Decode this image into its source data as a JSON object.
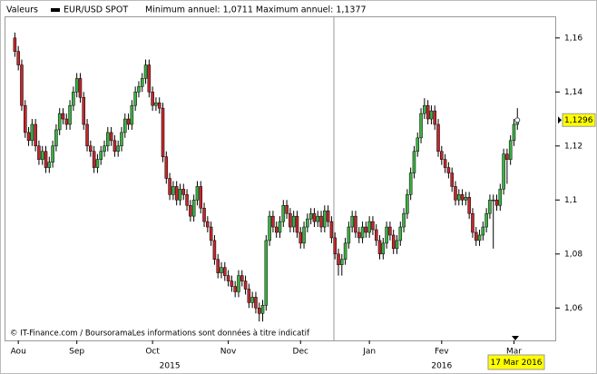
{
  "chart_data": {
    "type": "candlestick",
    "header": {
      "label": "Valeurs",
      "series_name": "EUR/USD SPOT",
      "stats": "Minimum annuel: 1,0711 Maximum annuel: 1,1377"
    },
    "footnote": "© IT-Finance.com / BoursoramaLes informations sont données à titre indicatif",
    "cursor_date": "17 Mar 2016",
    "up_color": "#3cb043",
    "down_color": "#c0282d",
    "xlim": [
      -3,
      157
    ],
    "xticks": [
      {
        "value": 1,
        "label": "Aou"
      },
      {
        "value": 18,
        "label": "Sep"
      },
      {
        "value": 40,
        "label": "Oct"
      },
      {
        "value": 62,
        "label": "Nov"
      },
      {
        "value": 83,
        "label": "Dec"
      },
      {
        "value": 103,
        "label": "Jan"
      },
      {
        "value": 124,
        "label": "Fev"
      },
      {
        "value": 145,
        "label": "Mar"
      }
    ],
    "year_labels": [
      {
        "value": 45,
        "label": "2015"
      },
      {
        "value": 124,
        "label": "2016"
      }
    ],
    "ylim": [
      1.048,
      1.168
    ],
    "yticks": [
      {
        "value": 1.06,
        "label": "1,06"
      },
      {
        "value": 1.08,
        "label": "1,08"
      },
      {
        "value": 1.1,
        "label": "1,1"
      },
      {
        "value": 1.12,
        "label": "1,12"
      },
      {
        "value": 1.14,
        "label": "1,14"
      },
      {
        "value": 1.16,
        "label": "1,16"
      }
    ],
    "grid": false,
    "last_price": {
      "value": 1.1296,
      "label": "1,1296"
    },
    "open": [
      1.16,
      1.155,
      1.15,
      1.135,
      1.125,
      1.122,
      1.128,
      1.12,
      1.115,
      1.118,
      1.112,
      1.114,
      1.12,
      1.126,
      1.132,
      1.13,
      1.128,
      1.135,
      1.14,
      1.145,
      1.138,
      1.128,
      1.12,
      1.118,
      1.112,
      1.115,
      1.118,
      1.12,
      1.125,
      1.122,
      1.118,
      1.12,
      1.125,
      1.13,
      1.128,
      1.135,
      1.14,
      1.142,
      1.145,
      1.15,
      1.14,
      1.135,
      1.136,
      1.134,
      1.116,
      1.108,
      1.102,
      1.105,
      1.1,
      1.104,
      1.102,
      1.098,
      1.094,
      1.1,
      1.105,
      1.097,
      1.092,
      1.09,
      1.085,
      1.078,
      1.073,
      1.075,
      1.072,
      1.07,
      1.068,
      1.066,
      1.072,
      1.07,
      1.067,
      1.062,
      1.064,
      1.06,
      1.058,
      1.061,
      1.085,
      1.094,
      1.09,
      1.088,
      1.092,
      1.098,
      1.095,
      1.09,
      1.094,
      1.088,
      1.084,
      1.09,
      1.093,
      1.095,
      1.092,
      1.094,
      1.09,
      1.096,
      1.092,
      1.086,
      1.08,
      1.076,
      1.078,
      1.084,
      1.09,
      1.094,
      1.088,
      1.086,
      1.09,
      1.088,
      1.092,
      1.089,
      1.085,
      1.08,
      1.084,
      1.09,
      1.087,
      1.082,
      1.085,
      1.09,
      1.095,
      1.102,
      1.11,
      1.118,
      1.123,
      1.132,
      1.135,
      1.13,
      1.133,
      1.128,
      1.118,
      1.115,
      1.112,
      1.11,
      1.105,
      1.1,
      1.102,
      1.1,
      1.101,
      1.095,
      1.088,
      1.085,
      1.087,
      1.09,
      1.095,
      1.1,
      1.1,
      1.098,
      1.104,
      1.117,
      1.115,
      1.122,
      1.128
    ],
    "high": [
      1.162,
      1.157,
      1.152,
      1.137,
      1.127,
      1.13,
      1.13,
      1.122,
      1.12,
      1.12,
      1.116,
      1.122,
      1.128,
      1.134,
      1.134,
      1.132,
      1.137,
      1.142,
      1.147,
      1.147,
      1.14,
      1.13,
      1.122,
      1.12,
      1.117,
      1.12,
      1.122,
      1.127,
      1.127,
      1.124,
      1.122,
      1.127,
      1.132,
      1.132,
      1.137,
      1.142,
      1.144,
      1.147,
      1.152,
      1.152,
      1.142,
      1.138,
      1.138,
      1.136,
      1.118,
      1.11,
      1.107,
      1.107,
      1.106,
      1.106,
      1.104,
      1.1,
      1.102,
      1.107,
      1.107,
      1.099,
      1.094,
      1.092,
      1.087,
      1.08,
      1.077,
      1.077,
      1.074,
      1.072,
      1.07,
      1.074,
      1.074,
      1.072,
      1.069,
      1.066,
      1.066,
      1.062,
      1.063,
      1.087,
      1.096,
      1.096,
      1.092,
      1.094,
      1.1,
      1.1,
      1.097,
      1.096,
      1.096,
      1.09,
      1.092,
      1.095,
      1.097,
      1.097,
      1.096,
      1.096,
      1.098,
      1.098,
      1.094,
      1.088,
      1.082,
      1.08,
      1.086,
      1.092,
      1.096,
      1.096,
      1.09,
      1.092,
      1.092,
      1.094,
      1.094,
      1.091,
      1.087,
      1.086,
      1.092,
      1.092,
      1.089,
      1.087,
      1.092,
      1.097,
      1.104,
      1.112,
      1.12,
      1.125,
      1.134,
      1.1377,
      1.137,
      1.135,
      1.135,
      1.13,
      1.12,
      1.117,
      1.114,
      1.112,
      1.107,
      1.104,
      1.104,
      1.103,
      1.103,
      1.097,
      1.09,
      1.089,
      1.092,
      1.097,
      1.102,
      1.102,
      1.102,
      1.106,
      1.119,
      1.119,
      1.124,
      1.13,
      1.134
    ],
    "low": [
      1.153,
      1.148,
      1.133,
      1.123,
      1.12,
      1.12,
      1.118,
      1.113,
      1.113,
      1.11,
      1.11,
      1.112,
      1.118,
      1.124,
      1.128,
      1.126,
      1.126,
      1.133,
      1.138,
      1.136,
      1.126,
      1.118,
      1.116,
      1.11,
      1.11,
      1.113,
      1.116,
      1.118,
      1.12,
      1.116,
      1.116,
      1.118,
      1.123,
      1.126,
      1.126,
      1.133,
      1.138,
      1.14,
      1.143,
      1.138,
      1.133,
      1.133,
      1.132,
      1.114,
      1.106,
      1.1,
      1.1,
      1.098,
      1.098,
      1.1,
      1.096,
      1.092,
      1.092,
      1.098,
      1.095,
      1.09,
      1.088,
      1.083,
      1.076,
      1.071,
      1.071,
      1.07,
      1.068,
      1.066,
      1.064,
      1.064,
      1.068,
      1.065,
      1.06,
      1.06,
      1.058,
      1.055,
      1.055,
      1.059,
      1.083,
      1.088,
      1.086,
      1.086,
      1.09,
      1.093,
      1.088,
      1.088,
      1.086,
      1.082,
      1.082,
      1.088,
      1.091,
      1.09,
      1.09,
      1.088,
      1.088,
      1.09,
      1.084,
      1.078,
      1.072,
      1.072,
      1.076,
      1.082,
      1.088,
      1.086,
      1.084,
      1.084,
      1.086,
      1.086,
      1.087,
      1.083,
      1.078,
      1.078,
      1.082,
      1.085,
      1.08,
      1.08,
      1.083,
      1.088,
      1.093,
      1.1,
      1.108,
      1.116,
      1.121,
      1.13,
      1.128,
      1.128,
      1.126,
      1.116,
      1.113,
      1.11,
      1.108,
      1.103,
      1.098,
      1.098,
      1.098,
      1.098,
      1.093,
      1.086,
      1.083,
      1.083,
      1.085,
      1.088,
      1.093,
      1.082,
      1.096,
      1.096,
      1.102,
      1.106,
      1.113,
      1.12,
      1.126
    ],
    "close": [
      1.155,
      1.15,
      1.135,
      1.125,
      1.122,
      1.128,
      1.12,
      1.115,
      1.118,
      1.112,
      1.114,
      1.12,
      1.126,
      1.132,
      1.13,
      1.128,
      1.135,
      1.14,
      1.145,
      1.138,
      1.128,
      1.12,
      1.118,
      1.112,
      1.115,
      1.118,
      1.12,
      1.125,
      1.122,
      1.118,
      1.12,
      1.125,
      1.13,
      1.128,
      1.135,
      1.14,
      1.142,
      1.145,
      1.15,
      1.14,
      1.135,
      1.136,
      1.134,
      1.116,
      1.108,
      1.102,
      1.105,
      1.1,
      1.104,
      1.102,
      1.098,
      1.094,
      1.1,
      1.105,
      1.097,
      1.092,
      1.09,
      1.085,
      1.078,
      1.073,
      1.075,
      1.072,
      1.07,
      1.068,
      1.066,
      1.072,
      1.07,
      1.067,
      1.062,
      1.064,
      1.06,
      1.058,
      1.061,
      1.085,
      1.094,
      1.09,
      1.088,
      1.092,
      1.098,
      1.095,
      1.09,
      1.094,
      1.088,
      1.084,
      1.09,
      1.093,
      1.095,
      1.092,
      1.094,
      1.09,
      1.096,
      1.092,
      1.086,
      1.08,
      1.076,
      1.078,
      1.084,
      1.09,
      1.094,
      1.088,
      1.086,
      1.09,
      1.088,
      1.092,
      1.089,
      1.085,
      1.08,
      1.084,
      1.09,
      1.087,
      1.082,
      1.085,
      1.09,
      1.095,
      1.102,
      1.11,
      1.118,
      1.123,
      1.132,
      1.135,
      1.13,
      1.133,
      1.128,
      1.118,
      1.115,
      1.112,
      1.11,
      1.105,
      1.1,
      1.102,
      1.1,
      1.101,
      1.095,
      1.088,
      1.085,
      1.087,
      1.09,
      1.095,
      1.1,
      1.1,
      1.098,
      1.104,
      1.117,
      1.115,
      1.122,
      1.128,
      1.1296
    ]
  }
}
